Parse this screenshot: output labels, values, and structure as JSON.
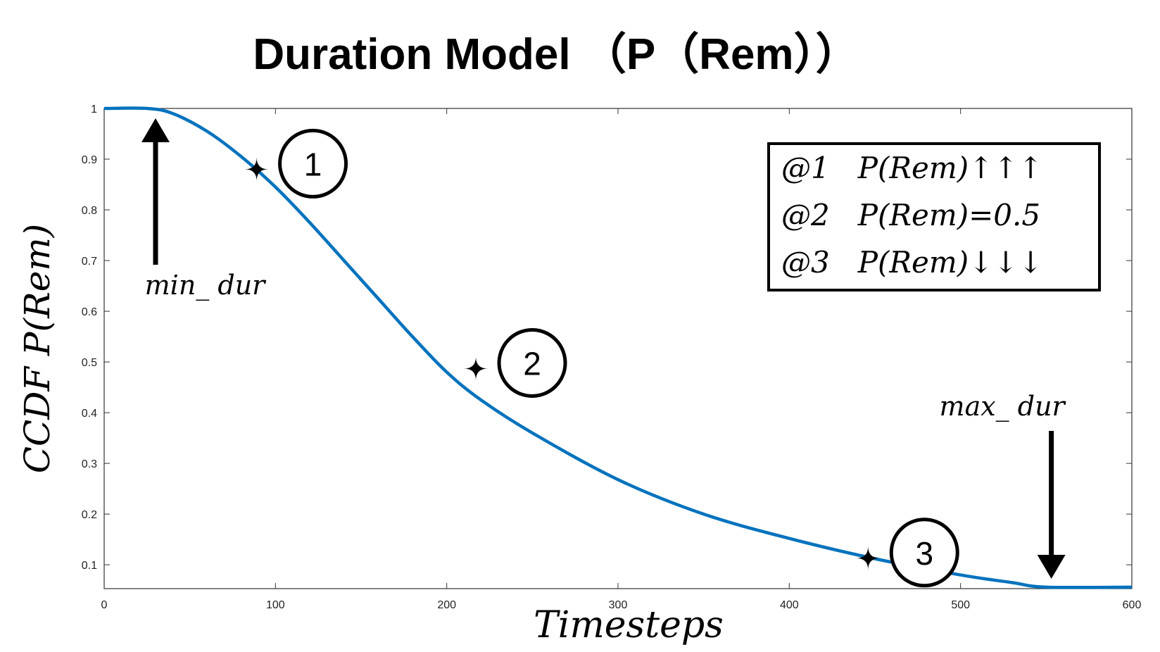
{
  "chart_data": {
    "type": "line",
    "title": "Duration Model （P（Rem））",
    "xlabel": "Timesteps",
    "ylabel": "CCDF P(Rem)",
    "xlim": [
      0,
      600
    ],
    "ylim": [
      0.053,
      1
    ],
    "x_ticks": [
      "0",
      "100",
      "200",
      "300",
      "400",
      "500",
      "600"
    ],
    "y_ticks": [
      "0.1",
      "0.2",
      "0.3",
      "0.4",
      "0.5",
      "0.6",
      "0.7",
      "0.8",
      "0.9",
      "1"
    ],
    "grid": false,
    "series": [
      {
        "color": "#0072BD",
        "points": [
          [
            0,
            1.0
          ],
          [
            25,
            1.0
          ],
          [
            40,
            0.99
          ],
          [
            60,
            0.955
          ],
          [
            80,
            0.905
          ],
          [
            100,
            0.845
          ],
          [
            120,
            0.775
          ],
          [
            140,
            0.7
          ],
          [
            160,
            0.625
          ],
          [
            180,
            0.55
          ],
          [
            200,
            0.48
          ],
          [
            220,
            0.425
          ],
          [
            250,
            0.36
          ],
          [
            300,
            0.268
          ],
          [
            350,
            0.2
          ],
          [
            400,
            0.152
          ],
          [
            450,
            0.112
          ],
          [
            500,
            0.08
          ],
          [
            530,
            0.065
          ],
          [
            550,
            0.056
          ],
          [
            600,
            0.056
          ]
        ]
      }
    ],
    "markers": [
      {
        "label": "1",
        "x": 89,
        "y": 0.88
      },
      {
        "label": "2",
        "x": 217,
        "y": 0.487
      },
      {
        "label": "3",
        "x": 446,
        "y": 0.113
      }
    ],
    "annotations": {
      "min_dur": {
        "text": "min_ dur",
        "x": 30
      },
      "max_dur": {
        "text": "max_ dur",
        "x": 553
      }
    },
    "legend_box": {
      "position": "top-right",
      "lines": [
        "@1   P(Rem)↑↑↑",
        "@2   P(Rem)=0.5",
        "@3   P(Rem)↓↓↓"
      ]
    }
  }
}
